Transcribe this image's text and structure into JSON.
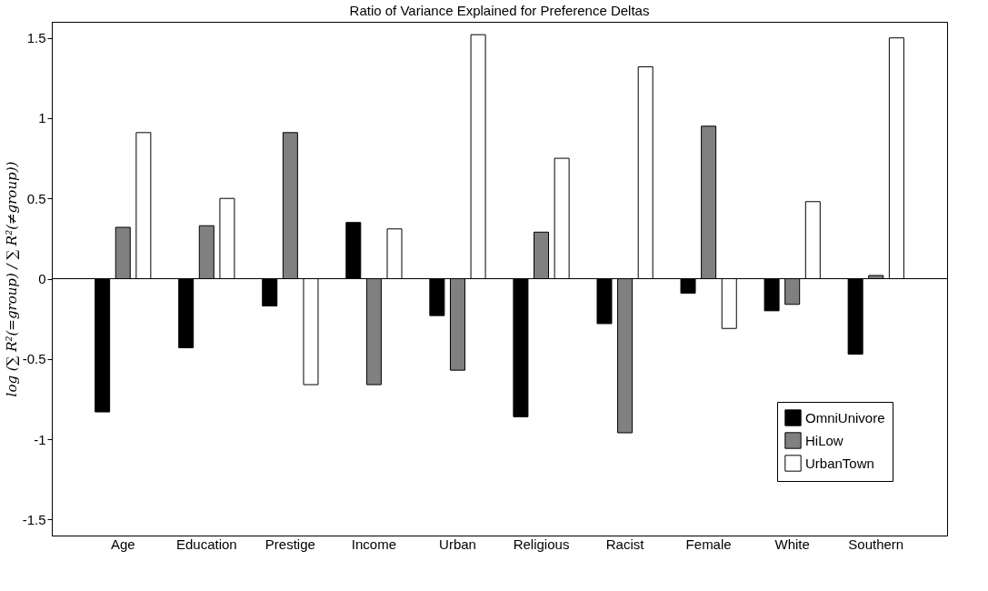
{
  "chart_data": {
    "type": "bar",
    "title": "Ratio of Variance Explained for Preference Deltas",
    "ylabel": "log (∑ R²(=group) / ∑ R²(≠group))",
    "categories": [
      "Age",
      "Education",
      "Prestige",
      "Income",
      "Urban",
      "Religious",
      "Racist",
      "Female",
      "White",
      "Southern"
    ],
    "series": [
      {
        "name": "OmniUnivore",
        "color": "#000000",
        "values": [
          -0.83,
          -0.43,
          -0.17,
          0.35,
          -0.23,
          -0.86,
          -0.28,
          -0.09,
          -0.2,
          -0.47
        ]
      },
      {
        "name": "HiLow",
        "color": "#808080",
        "values": [
          0.32,
          0.33,
          0.91,
          -0.66,
          -0.57,
          0.29,
          -0.96,
          0.95,
          -0.16,
          0.02
        ]
      },
      {
        "name": "UrbanTown",
        "color": "#ffffff",
        "values": [
          0.91,
          0.5,
          -0.66,
          0.31,
          1.52,
          0.75,
          1.32,
          -0.31,
          0.48,
          1.5
        ]
      }
    ],
    "ylim": [
      -1.6,
      1.6
    ],
    "yticks": [
      -1.5,
      -1,
      -0.5,
      0,
      0.5,
      1,
      1.5
    ],
    "grid": false,
    "legend": "bottom right",
    "ref_lines": [
      {
        "axis": "y",
        "value": 0,
        "color": "#000000"
      }
    ]
  }
}
